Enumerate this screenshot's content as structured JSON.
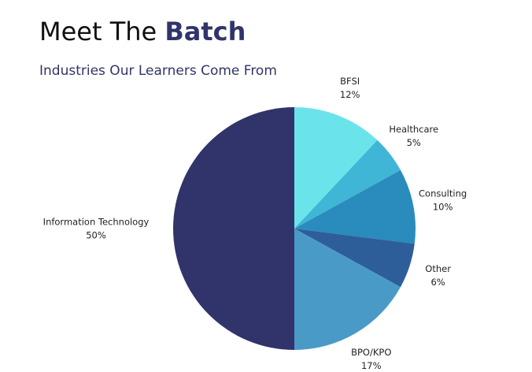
{
  "chart_data": {
    "type": "pie",
    "title": [
      "Meet The",
      "Batch"
    ],
    "subtitle": "Industries Our Learners Come From",
    "categories": [
      "BFSI",
      "Healthcare",
      "Consulting",
      "Other",
      "BPO/KPO",
      "Information Technology"
    ],
    "values": [
      12,
      5,
      10,
      6,
      17,
      50
    ],
    "value_labels": [
      "12%",
      "5%",
      "10%",
      "6%",
      "17%",
      "50%"
    ],
    "colors": [
      "#6ae4ea",
      "#40b6d6",
      "#2a8bbd",
      "#2e5e9a",
      "#4a9ac8",
      "#31346a"
    ]
  }
}
